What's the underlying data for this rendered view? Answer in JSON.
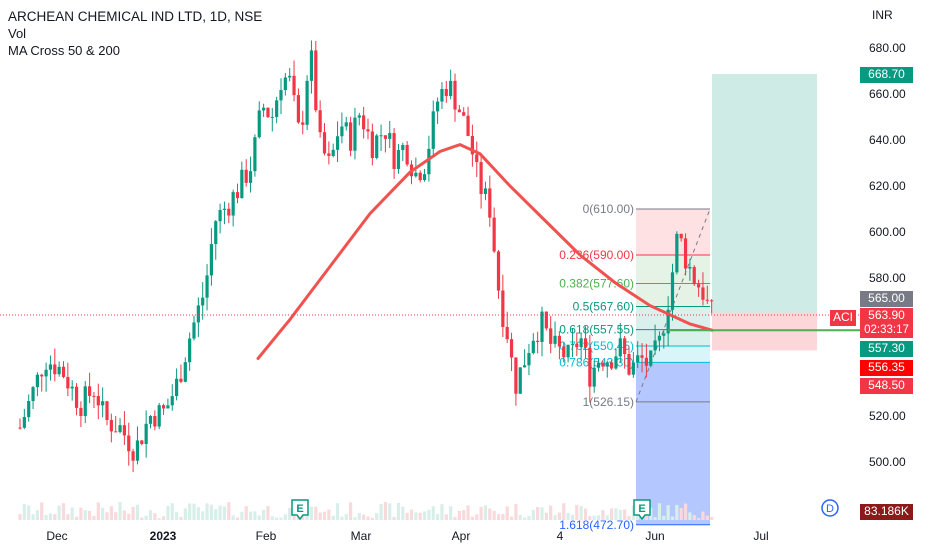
{
  "header": {
    "title": "ARCHEAN CHEMICAL IND LTD, 1D, NSE",
    "vol": "Vol",
    "ma": "MA Cross 50 & 200",
    "currency": "INR"
  },
  "colors": {
    "up": "#089981",
    "down": "#f23645",
    "ma": "#f0524f",
    "vol_up": "#d8efe9",
    "vol_down": "#f8d9dc"
  },
  "price_axis": {
    "ticks": [
      "680.00",
      "660.00",
      "640.00",
      "620.00",
      "600.00",
      "580.00",
      "560.00",
      "540.00",
      "520.00",
      "500.00"
    ]
  },
  "time_axis": {
    "labels": [
      "Dec",
      "2023",
      "Feb",
      "Mar",
      "Apr",
      "4",
      "Jun",
      "Jul"
    ]
  },
  "price_labels": {
    "target": "668.70",
    "entry": "565.00",
    "ticker": "ACI",
    "last": "563.90",
    "countdown": "02:33:17",
    "ma_value": "557.30",
    "p1": "556.35",
    "stop": "548.50",
    "volume": "83.186K"
  },
  "fib_levels": [
    {
      "label": "0(610.00)",
      "price": 610.0,
      "color": "#787b86"
    },
    {
      "label": "0.236(590.00)",
      "price": 590.0,
      "color": "#f23645"
    },
    {
      "label": "0.382(577.60)",
      "price": 577.6,
      "color": "#4caf50"
    },
    {
      "label": "0.5(567.60)",
      "price": 567.6,
      "color": "#089981"
    },
    {
      "label": "0.618(557.55)",
      "price": 557.55,
      "color": "#089981"
    },
    {
      "label": "0.702(550.45)",
      "price": 550.45,
      "color": "#00bcd4"
    },
    {
      "label": "0.786(543.30)",
      "price": 543.3,
      "color": "#00bcd4"
    },
    {
      "label": "1(526.15)",
      "price": 526.15,
      "color": "#787b86"
    },
    {
      "label": "1.618(472.70)",
      "price": 472.7,
      "color": "#2962ff"
    }
  ],
  "position": {
    "entry": 565.0,
    "target": 668.7,
    "stop": 548.5
  },
  "markers": [
    {
      "label": "E",
      "type": "earnings"
    },
    {
      "label": "E",
      "type": "earnings"
    },
    {
      "label": "D",
      "type": "dividend"
    }
  ],
  "chart_data": {
    "type": "candlestick",
    "title": "ARCHEAN CHEMICAL IND LTD, 1D, NSE",
    "ylabel": "INR",
    "ylim": [
      486,
      695
    ],
    "x_labels": [
      "Dec",
      "2023",
      "Feb",
      "Mar",
      "Apr",
      "4",
      "Jun",
      "Jul"
    ],
    "series": [
      {
        "name": "ARCHEAN CHEMICAL IND LTD",
        "type": "candlestick"
      },
      {
        "name": "MA Cross 50 & 200",
        "type": "line"
      },
      {
        "name": "Vol",
        "type": "volume"
      }
    ],
    "price_approx": [
      [
        "Nov-end",
        515
      ],
      [
        "Dec-start",
        545
      ],
      [
        "Dec-mid",
        530
      ],
      [
        "Dec-end",
        505
      ],
      [
        "Jan-start",
        500
      ],
      [
        "Jan-mid",
        535
      ],
      [
        "Jan-late",
        575
      ],
      [
        "Jan-end",
        610
      ],
      [
        "Feb-start",
        625
      ],
      [
        "Feb-mid",
        660
      ],
      [
        "Feb-mid2",
        685
      ],
      [
        "Feb-late",
        635
      ],
      [
        "Mar-start",
        640
      ],
      [
        "Mar-mid",
        650
      ],
      [
        "Mar-late",
        625
      ],
      [
        "Apr-start",
        665
      ],
      [
        "Apr-mid",
        615
      ],
      [
        "Apr-late",
        575
      ],
      [
        "Apr-end",
        545
      ],
      [
        "May-start",
        555
      ],
      [
        "May-mid",
        550
      ],
      [
        "May-late",
        540
      ],
      [
        "Jun-start",
        555
      ],
      [
        "Jun-mid",
        600
      ],
      [
        "Jun-late",
        575
      ],
      [
        "Jun-end",
        563.9
      ]
    ],
    "ma_approx": [
      [
        "Jan-mid",
        545
      ],
      [
        "Jan-end",
        562
      ],
      [
        "Feb-start",
        578
      ],
      [
        "Feb-mid",
        600
      ],
      [
        "Mar-start",
        617
      ],
      [
        "Mar-late",
        628
      ],
      [
        "Apr-start",
        638
      ],
      [
        "Apr-mid",
        630
      ],
      [
        "Apr-late",
        614
      ],
      [
        "May-start",
        600
      ],
      [
        "May-mid",
        588
      ],
      [
        "Jun-start",
        575
      ],
      [
        "Jun-mid",
        563
      ],
      [
        "Jun-late",
        557.3
      ]
    ],
    "annotations": [
      "fibonacci retracement 610.00 to 526.15",
      "long position entry 565.00 target 668.70 stop 548.50"
    ],
    "grid": false
  }
}
